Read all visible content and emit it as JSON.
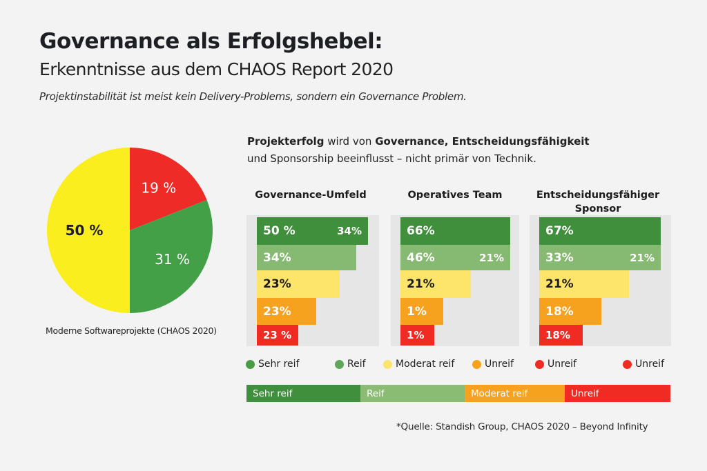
{
  "header": {
    "title": "Governance als Erfolgshebel:",
    "subtitle": "Erkenntnisse aus dem CHAOS Report 2020",
    "tagline": "Projektinstabilität ist meist kein Delivery-Problems, sondern ein Governance Problem."
  },
  "intro": {
    "line1_b1": "Projekterfolg",
    "line1_t1": " wird von ",
    "line1_b2": "Governance, Entscheidungsfähigkeit",
    "line2": "und Sponsorship beeinflusst – nicht primär von Technik."
  },
  "colors": {
    "very_mature": "#3f8f3c",
    "mature": "#86b971",
    "moderate": "#fde46a",
    "immature_orange": "#f6a21e",
    "immature_red": "#ef2b24",
    "pie_red": "#ee2b26",
    "pie_green": "#44a047",
    "pie_yellow": "#fbee1f"
  },
  "chart_data": [
    {
      "type": "pie",
      "title": "",
      "caption": "Moderne Softwareprojekte (CHAOS 2020)",
      "slices": [
        {
          "label": "19 %",
          "value": 19,
          "color_key": "pie_red"
        },
        {
          "label": "31 %",
          "value": 31,
          "color_key": "pie_green"
        },
        {
          "label": "50 %",
          "value": 50,
          "color_key": "pie_yellow"
        }
      ]
    },
    {
      "type": "bar",
      "orientation": "horizontal",
      "panels": [
        {
          "title": [
            "Governance-Umfeld"
          ],
          "rows": [
            {
              "label": "50 %",
              "secondary": "34%",
              "value": 50,
              "color_key": "very_mature",
              "text": "#ffffff"
            },
            {
              "label": "34%",
              "secondary": "",
              "value": 34,
              "color_key": "mature",
              "text": "#ffffff"
            },
            {
              "label": "23%",
              "secondary": "",
              "value": 23,
              "color_key": "moderate",
              "text": "#1c1c1c"
            },
            {
              "label": "23%",
              "secondary": "",
              "value": 23,
              "color_key": "immature_orange",
              "text": "#ffffff"
            },
            {
              "label": "23 %",
              "secondary": "",
              "value": 23,
              "color_key": "immature_red",
              "text": "#ffffff"
            }
          ],
          "bar_fraction": [
            0.97,
            0.87,
            0.72,
            0.52,
            0.36
          ]
        },
        {
          "title": [
            "Operatives Team"
          ],
          "rows": [
            {
              "label": "66%",
              "secondary": "",
              "value": 66,
              "color_key": "very_mature",
              "text": "#ffffff"
            },
            {
              "label": "46%",
              "secondary": "21%",
              "value": 46,
              "color_key": "mature",
              "text": "#ffffff"
            },
            {
              "label": "21%",
              "secondary": "",
              "value": 21,
              "color_key": "moderate",
              "text": "#1c1c1c"
            },
            {
              "label": "1%",
              "secondary": "",
              "value": 1,
              "color_key": "immature_orange",
              "text": "#ffffff"
            },
            {
              "label": "1%",
              "secondary": "",
              "value": 1,
              "color_key": "immature_red",
              "text": "#ffffff"
            }
          ],
          "bar_fraction": [
            0.98,
            0.98,
            0.63,
            0.38,
            0.3
          ]
        },
        {
          "title": [
            "Entscheidungsfähiger",
            "Sponsor"
          ],
          "rows": [
            {
              "label": "67%",
              "secondary": "",
              "value": 67,
              "color_key": "very_mature",
              "text": "#ffffff"
            },
            {
              "label": "33%",
              "secondary": "21%",
              "value": 33,
              "color_key": "mature",
              "text": "#ffffff"
            },
            {
              "label": "21%",
              "secondary": "",
              "value": 21,
              "color_key": "moderate",
              "text": "#1c1c1c"
            },
            {
              "label": "18%",
              "secondary": "",
              "value": 18,
              "color_key": "immature_orange",
              "text": "#ffffff"
            },
            {
              "label": "18%",
              "secondary": "",
              "value": 18,
              "color_key": "immature_red",
              "text": "#ffffff"
            }
          ],
          "bar_fraction": [
            0.98,
            0.98,
            0.72,
            0.5,
            0.35
          ]
        }
      ]
    }
  ],
  "legend": [
    {
      "label": "Sehr reif",
      "color_key": "very_mature"
    },
    {
      "label": "Reif",
      "color_key": "mature"
    },
    {
      "label": "Moderat reif",
      "color_key": "moderate"
    },
    {
      "label": "Unreif",
      "color_key": "immature_orange"
    },
    {
      "label": "Unreif",
      "color_key": "immature_red"
    },
    {
      "label": "Unreif",
      "color_key": "immature_red"
    }
  ],
  "scale": [
    {
      "label": "Sehr reif",
      "color_key": "very_mature"
    },
    {
      "label": "Reif",
      "color_key": "mature"
    },
    {
      "label": "Moderat reif",
      "color_key": "immature_orange"
    },
    {
      "label": "Unreif",
      "color_key": "immature_red"
    }
  ],
  "source": "*Quelle: Standish Group, CHAOS 2020 – Beyond Infinity"
}
